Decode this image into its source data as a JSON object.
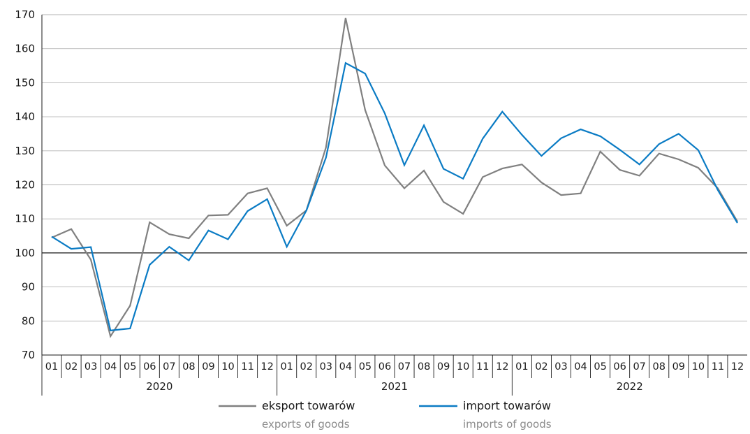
{
  "chart_data": {
    "type": "line",
    "ylim": [
      70,
      170
    ],
    "yticks": [
      70,
      80,
      90,
      100,
      110,
      120,
      130,
      140,
      150,
      160,
      170
    ],
    "grid": true,
    "months": [
      "01",
      "02",
      "03",
      "04",
      "05",
      "06",
      "07",
      "08",
      "09",
      "10",
      "11",
      "12",
      "01",
      "02",
      "03",
      "04",
      "05",
      "06",
      "07",
      "08",
      "09",
      "10",
      "11",
      "12",
      "01",
      "02",
      "03",
      "04",
      "05",
      "06",
      "07",
      "08",
      "09",
      "10",
      "11",
      "12"
    ],
    "years": [
      "2020",
      "2021",
      "2022"
    ],
    "baseline": 100,
    "legend_position": "bottom",
    "series": [
      {
        "name": "eksport towarów",
        "name_en": "exports of goods",
        "color": "#808080",
        "values": [
          104.5,
          107.0,
          98.0,
          75.5,
          84.5,
          109.0,
          105.5,
          104.3,
          111.0,
          111.2,
          117.5,
          119.0,
          108.0,
          112.5,
          131.0,
          169.0,
          142.0,
          125.7,
          119.0,
          124.2,
          115.0,
          111.5,
          122.3,
          124.8,
          126.0,
          120.7,
          117.0,
          117.5,
          129.8,
          124.4,
          122.7,
          129.2,
          127.5,
          125.0,
          119.0,
          109.2
        ]
      },
      {
        "name": "import towarów",
        "name_en": "imports of goods",
        "color": "#0a7bc4",
        "values": [
          104.8,
          101.2,
          101.7,
          77.2,
          77.8,
          96.5,
          101.8,
          97.8,
          106.6,
          104.0,
          112.3,
          115.8,
          101.8,
          112.5,
          128.0,
          155.8,
          152.7,
          141.0,
          125.8,
          137.5,
          124.7,
          121.8,
          133.6,
          141.5,
          134.7,
          128.5,
          133.7,
          136.3,
          134.3,
          130.3,
          126.0,
          132.0,
          135.0,
          130.2,
          118.5,
          108.8
        ]
      }
    ]
  }
}
